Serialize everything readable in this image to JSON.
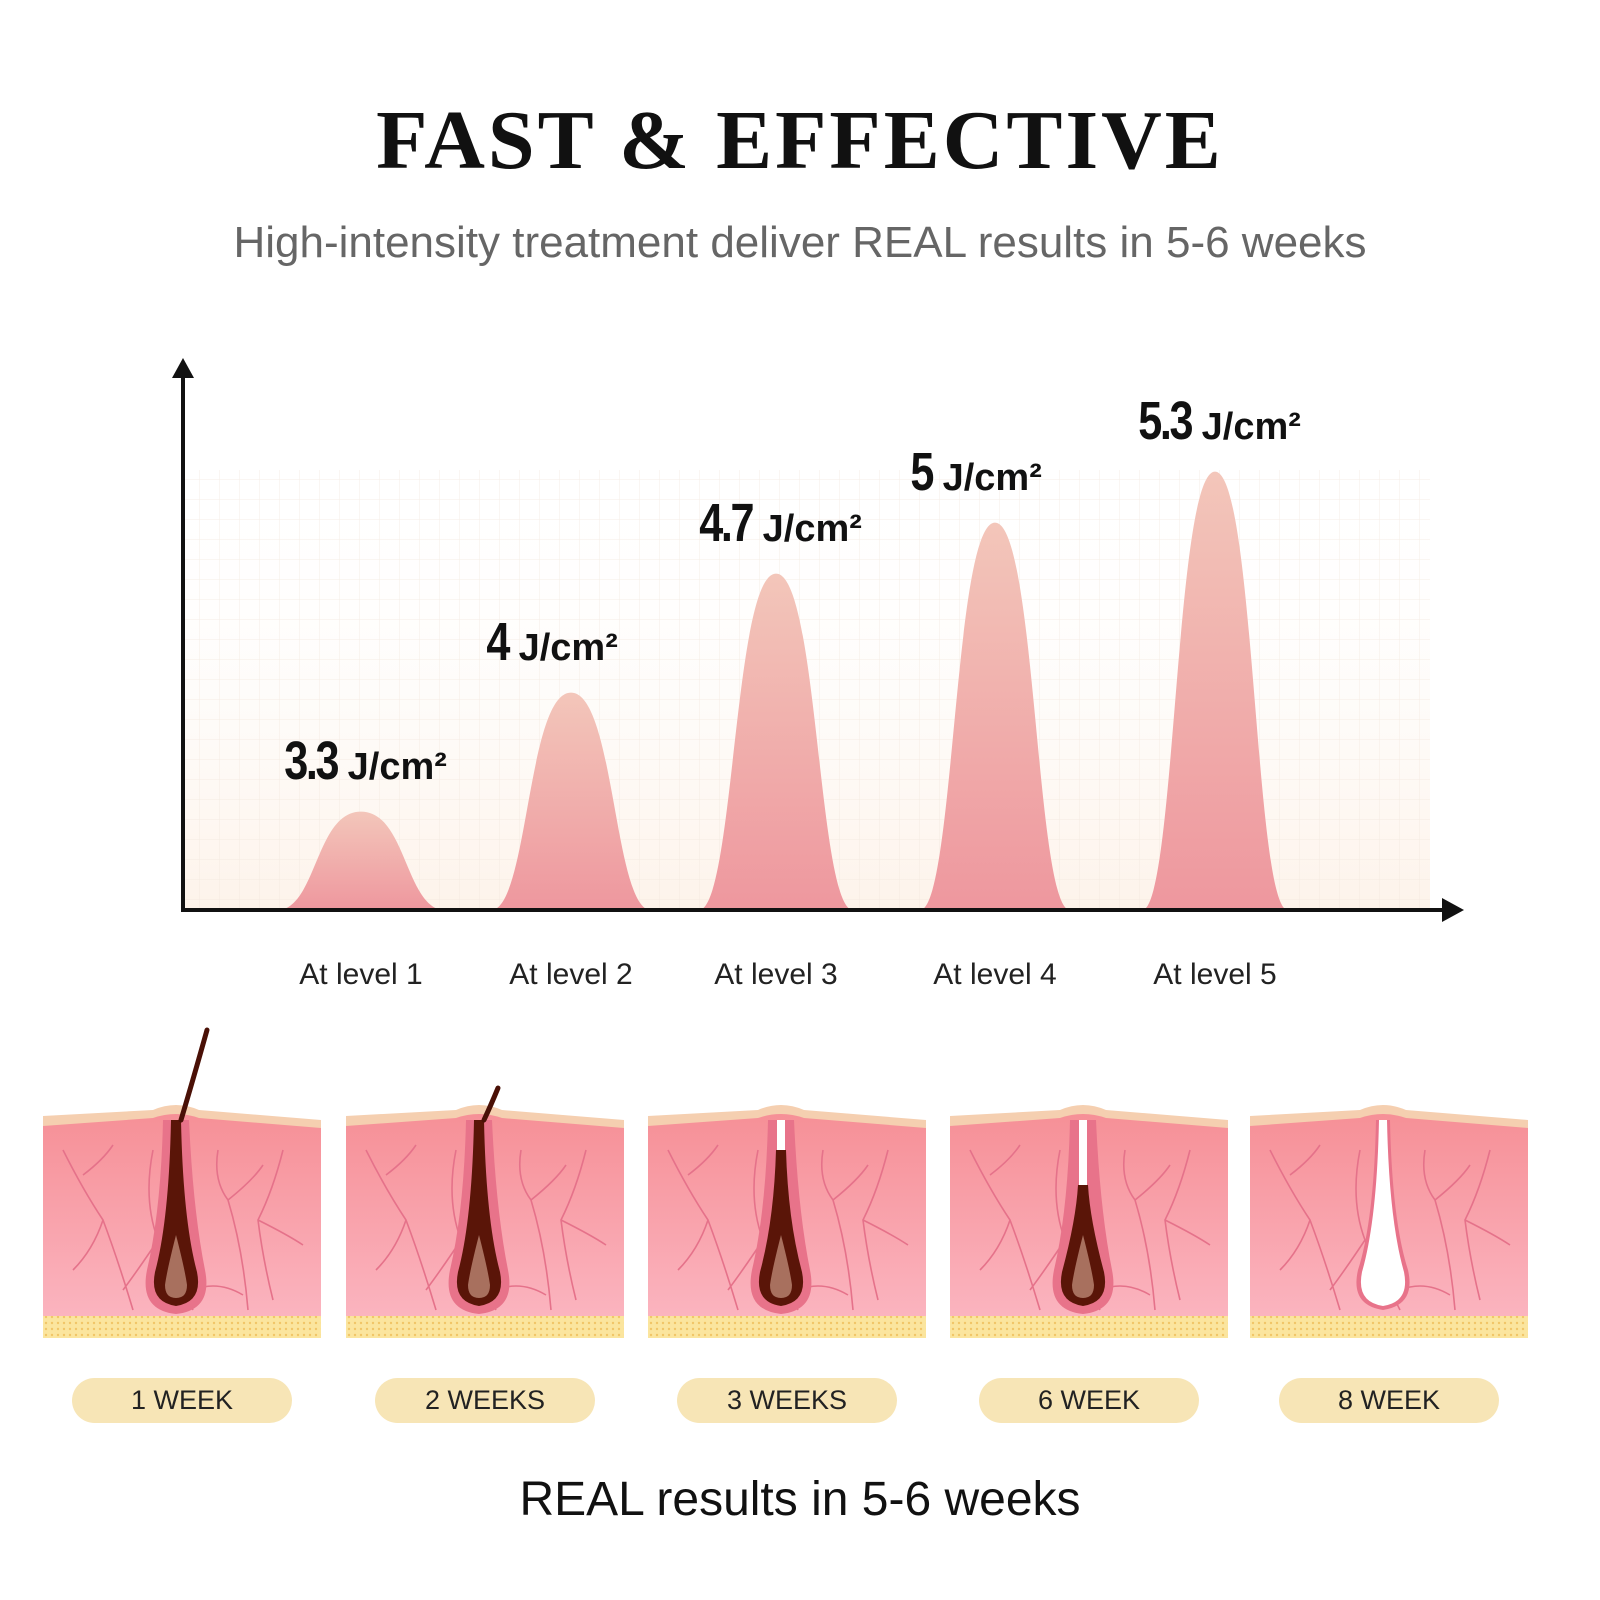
{
  "header": {
    "title": "FAST & EFFECTIVE",
    "subtitle": "High-intensity treatment deliver REAL results in 5-6 weeks"
  },
  "chart_data": {
    "type": "area",
    "title": "",
    "xlabel": "",
    "ylabel": "",
    "categories": [
      "At level 1",
      "At level 2",
      "At level 3",
      "At level 4",
      "At level 5"
    ],
    "values": [
      3.3,
      4,
      4.7,
      5,
      5.3
    ],
    "unit": "J/cm²",
    "value_labels": [
      "3.3",
      "4",
      "4.7",
      "5",
      "5.3"
    ],
    "grid": true,
    "colors": {
      "peak_top": "#f3c4b8",
      "peak_bottom": "#ee9aa0",
      "axis": "#111111"
    }
  },
  "stages": [
    {
      "label": "1 WEEK",
      "state": "full"
    },
    {
      "label": "2 WEEKS",
      "state": "short"
    },
    {
      "label": "3 WEEKS",
      "state": "broken"
    },
    {
      "label": "6 WEEK",
      "state": "receding"
    },
    {
      "label": "8 WEEK",
      "state": "empty"
    }
  ],
  "footer": {
    "text": "REAL results in 5-6 weeks"
  }
}
